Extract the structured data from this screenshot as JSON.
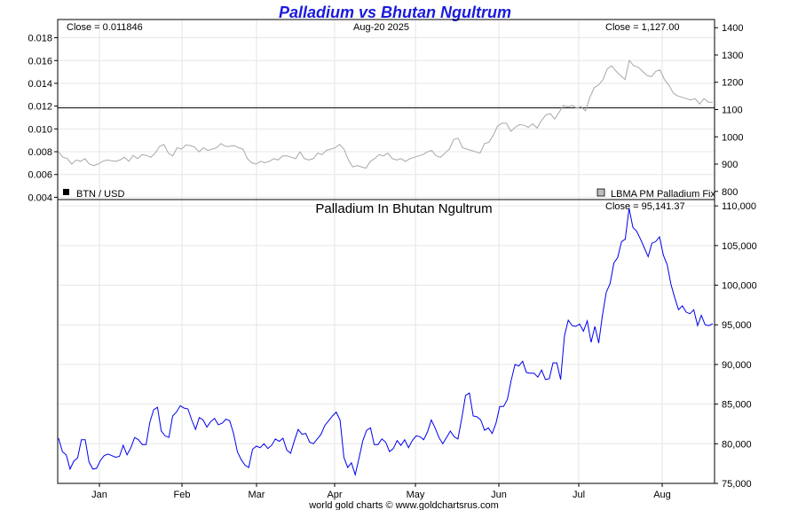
{
  "header": {
    "title": "Palladium vs Bhutan Ngultrum",
    "date": "Aug-20  2025",
    "close_ratio": "Close = 0.011846",
    "close_lbma": "Close = 1,127.00",
    "close_main": "Close = 95,141.37",
    "footer": "world gold charts © www.goldchartsrus.com"
  },
  "colors": {
    "title": "#1a1adf",
    "main_line": "#0000ee",
    "top_line": "#a8a8a8",
    "grid": "#e6e6e6",
    "close_line": "#000000"
  },
  "legend": {
    "left": "BTN / USD",
    "right": "LBMA PM Palladium Fix"
  },
  "chart_data": [
    {
      "type": "line",
      "title": "",
      "x_ticks": [
        "Jan",
        "Feb",
        "Mar",
        "Apr",
        "May",
        "Jun",
        "Jul",
        "Aug"
      ],
      "y_left_ticks": [
        "0.018",
        "0.016",
        "0.014",
        "0.012",
        "0.010",
        "0.008",
        "0.006",
        "0.004"
      ],
      "y_right_ticks": [
        "1400",
        "1300",
        "1200",
        "1100",
        "1000",
        "900",
        "800"
      ],
      "ylim_left": [
        0.0038,
        0.0196
      ],
      "ylim_right": [
        770,
        1430
      ],
      "series": [
        {
          "name": "BTN / USD",
          "axis": "left",
          "values": [
            0.011846
          ]
        },
        {
          "name": "LBMA PM Palladium Fix",
          "axis": "right",
          "values": [
            945,
            925,
            920,
            900,
            915,
            910,
            920,
            900,
            895,
            900,
            910,
            915,
            912,
            910,
            915,
            925,
            910,
            932,
            920,
            935,
            932,
            925,
            940,
            965,
            972,
            940,
            930,
            960,
            955,
            970,
            968,
            962,
            945,
            960,
            950,
            955,
            960,
            975,
            965,
            965,
            968,
            960,
            955,
            920,
            905,
            900,
            910,
            905,
            910,
            920,
            915,
            930,
            930,
            925,
            920,
            945,
            920,
            915,
            920,
            940,
            935,
            950,
            955,
            960,
            972,
            955,
            915,
            890,
            895,
            890,
            885,
            910,
            920,
            935,
            930,
            940,
            920,
            915,
            920,
            910,
            920,
            925,
            930,
            935,
            945,
            950,
            930,
            925,
            940,
            955,
            990,
            995,
            960,
            955,
            950,
            945,
            940,
            975,
            980,
            1005,
            1040,
            1050,
            1050,
            1020,
            1035,
            1045,
            1042,
            1035,
            1048,
            1032,
            1060,
            1080,
            1085,
            1065,
            1090,
            1115,
            1110,
            1115,
            1105,
            1110,
            1095,
            1145,
            1180,
            1190,
            1210,
            1250,
            1260,
            1240,
            1225,
            1210,
            1280,
            1260,
            1255,
            1240,
            1225,
            1220,
            1240,
            1245,
            1210,
            1190,
            1160,
            1150,
            1145,
            1140,
            1135,
            1140,
            1120,
            1140,
            1127,
            1127
          ]
        }
      ]
    },
    {
      "type": "line",
      "title": "Palladium In Bhutan Ngultrum",
      "x_ticks": [
        "Jan",
        "Feb",
        "Mar",
        "Apr",
        "May",
        "Jun",
        "Jul",
        "Aug"
      ],
      "y_ticks": [
        "110,000",
        "105,000",
        "100,000",
        "95,000",
        "90,000",
        "85,000",
        "80,000",
        "75,000"
      ],
      "ylim": [
        75000,
        110800
      ],
      "series": [
        {
          "name": "Palladium In Bhutan Ngultrum",
          "values": [
            80700,
            79000,
            78600,
            76800,
            77800,
            78200,
            80500,
            80500,
            77700,
            76800,
            76900,
            77900,
            78500,
            78700,
            78500,
            78300,
            78400,
            79800,
            78600,
            79500,
            80800,
            80500,
            79900,
            79900,
            82700,
            84300,
            84600,
            81600,
            81000,
            80800,
            83500,
            84000,
            84800,
            84500,
            84400,
            83000,
            81800,
            83300,
            83000,
            82100,
            82800,
            83200,
            82400,
            82600,
            83100,
            82900,
            81300,
            79000,
            78000,
            77300,
            77000,
            79300,
            79700,
            79500,
            80000,
            79400,
            79800,
            80600,
            80300,
            80700,
            79200,
            78800,
            80400,
            81800,
            81200,
            81300,
            80200,
            80000,
            80600,
            81200,
            82300,
            82900,
            83500,
            84000,
            83000,
            78300,
            77000,
            77600,
            76100,
            78200,
            80400,
            81700,
            82000,
            79900,
            79900,
            80600,
            80200,
            79000,
            79400,
            80400,
            79800,
            80500,
            79500,
            80400,
            81000,
            80900,
            80500,
            81500,
            83000,
            82000,
            80800,
            80000,
            80800,
            81600,
            80900,
            80600,
            83200,
            86100,
            86400,
            83500,
            83400,
            83000,
            81700,
            82000,
            81300,
            82600,
            84700,
            84700,
            85600,
            88000,
            90000,
            89800,
            90400,
            89000,
            88900,
            88900,
            88400,
            89300,
            88100,
            88200,
            90200,
            90200,
            88100,
            93600,
            95600,
            94900,
            94800,
            95100,
            94200,
            95500,
            92800,
            94800,
            92700,
            96200,
            99100,
            100200,
            102800,
            103500,
            105500,
            105800,
            109700,
            107300,
            106800,
            105800,
            104700,
            103600,
            105300,
            105500,
            106100,
            103800,
            102600,
            100100,
            98400,
            96900,
            97400,
            96600,
            96400,
            96900,
            94900,
            96200,
            95000,
            94900,
            95141
          ]
        }
      ]
    }
  ]
}
